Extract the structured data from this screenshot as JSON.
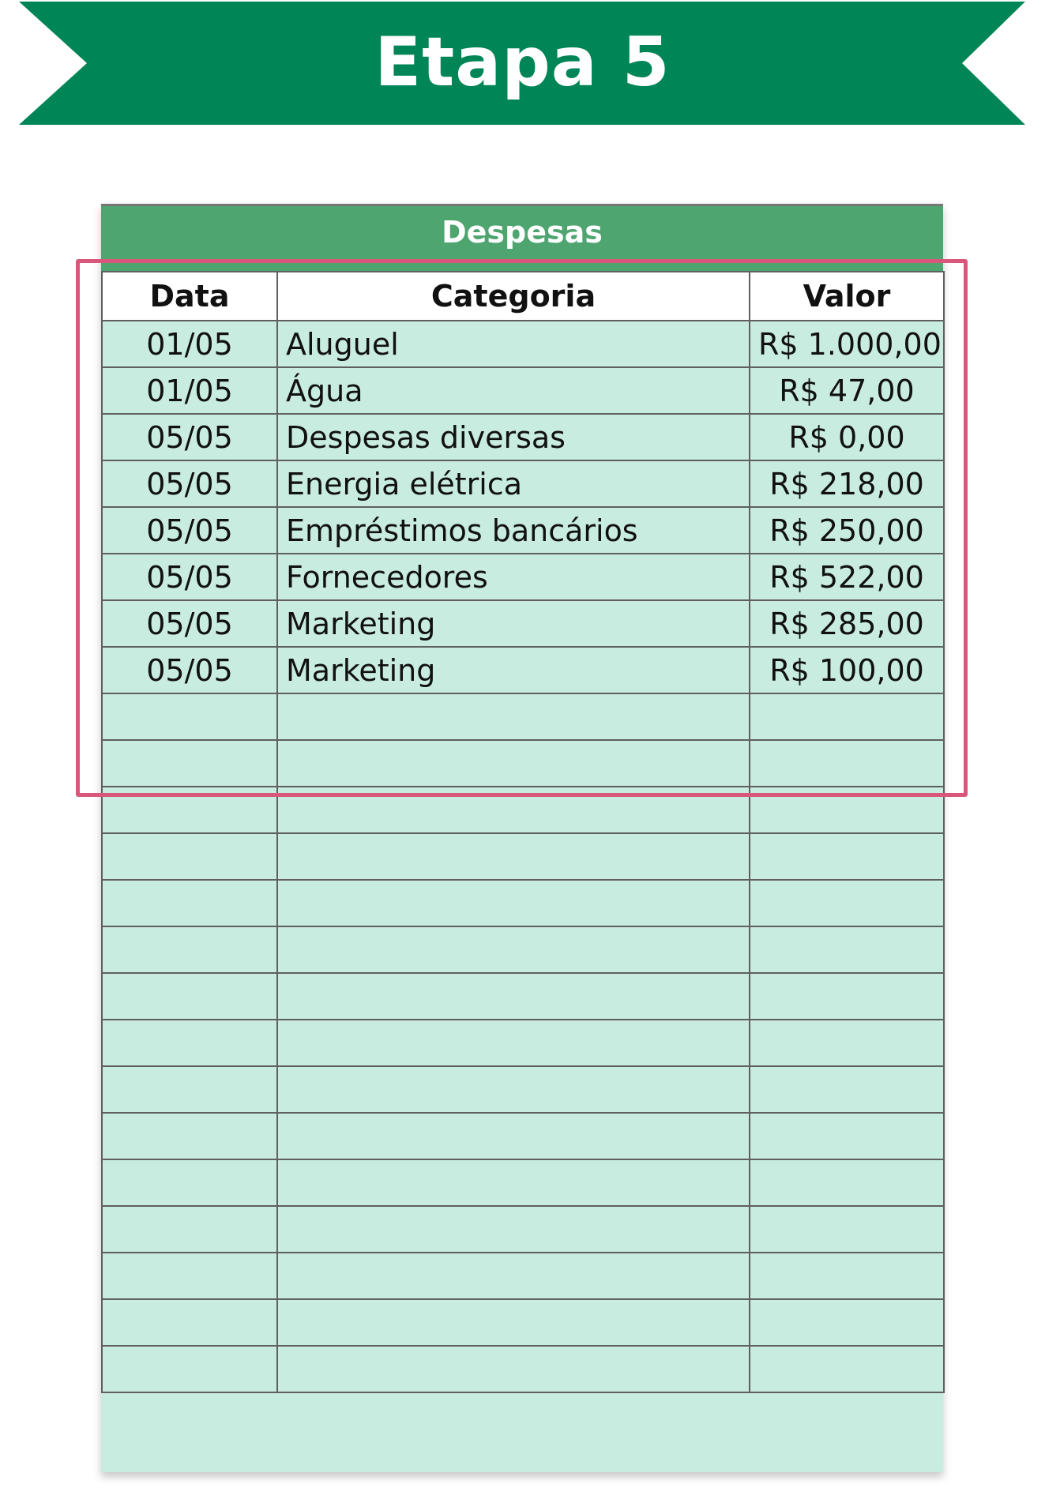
{
  "banner": {
    "title": "Etapa 5",
    "color": "#008556"
  },
  "sheet": {
    "title": "Despesas",
    "header_color": "#4ea570",
    "row_color": "#c9ece0",
    "columns": [
      "Data",
      "Categoria",
      "Valor"
    ],
    "rows": [
      {
        "date": "01/05",
        "category": "Aluguel",
        "value": "R$ 1.000,00"
      },
      {
        "date": "01/05",
        "category": "Água",
        "value": "R$ 47,00"
      },
      {
        "date": "05/05",
        "category": "Despesas diversas",
        "value": "R$ 0,00"
      },
      {
        "date": "05/05",
        "category": "Energia elétrica",
        "value": "R$ 218,00"
      },
      {
        "date": "05/05",
        "category": "Empréstimos bancários",
        "value": "R$ 250,00"
      },
      {
        "date": "05/05",
        "category": "Fornecedores",
        "value": "R$ 522,00"
      },
      {
        "date": "05/05",
        "category": "Marketing",
        "value": "R$ 285,00"
      },
      {
        "date": "05/05",
        "category": "Marketing",
        "value": "R$ 100,00"
      }
    ],
    "empty_row_count": 15
  },
  "highlight": {
    "color": "#d8577a"
  }
}
